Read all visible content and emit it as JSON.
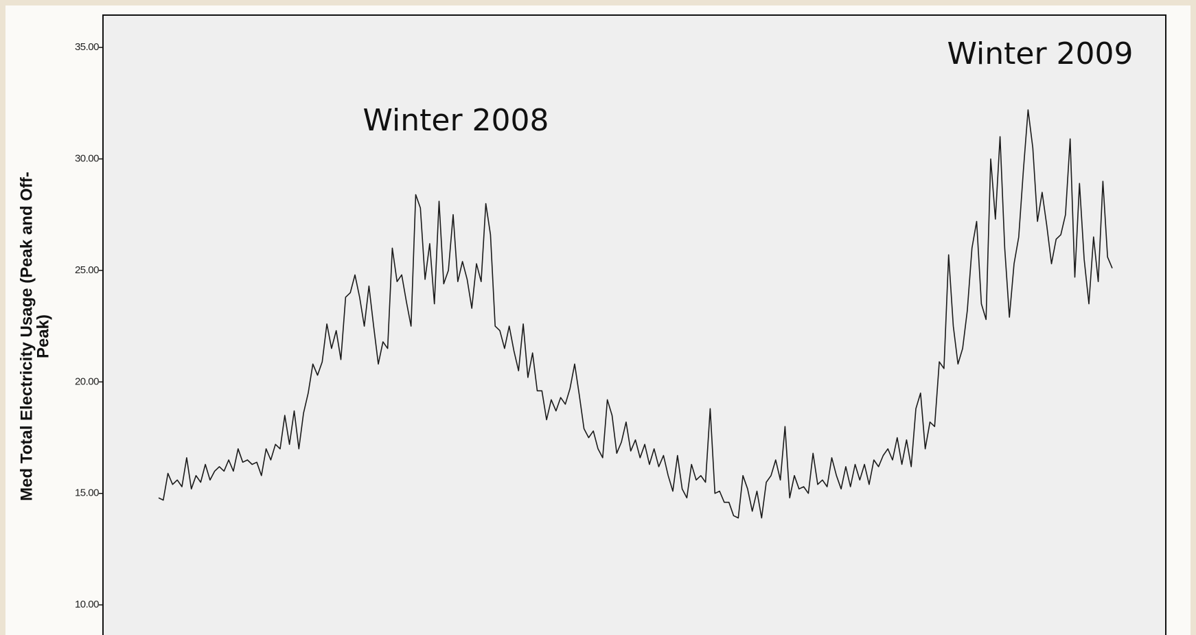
{
  "chart_data": {
    "type": "line",
    "y_label": [
      "Med Total Electricity Usage (Peak and Off-",
      "Peak)"
    ],
    "annotations": [
      "Winter 2008",
      "Winter 2009"
    ],
    "color": "#1a1a1a",
    "ylim": [
      8.65,
      36.45
    ],
    "yticks": [
      {
        "value": 10,
        "label": "10.00"
      },
      {
        "value": 15,
        "label": "15.00"
      },
      {
        "value": 20,
        "label": "20.00"
      },
      {
        "value": 25,
        "label": "25.00"
      },
      {
        "value": 30,
        "label": "30.00"
      },
      {
        "value": 35,
        "label": "35.00"
      }
    ],
    "values": [
      14.8,
      14.7,
      15.9,
      15.4,
      15.6,
      15.3,
      16.6,
      15.2,
      15.8,
      15.5,
      16.3,
      15.6,
      16.0,
      16.2,
      16.0,
      16.5,
      16.0,
      17.0,
      16.4,
      16.5,
      16.3,
      16.4,
      15.8,
      17.0,
      16.5,
      17.2,
      17.0,
      18.5,
      17.2,
      18.7,
      17.0,
      18.6,
      19.5,
      20.8,
      20.3,
      20.9,
      22.6,
      21.5,
      22.3,
      21.0,
      23.8,
      24.0,
      24.8,
      23.8,
      22.5,
      24.3,
      22.5,
      20.8,
      21.8,
      21.5,
      26.0,
      24.5,
      24.8,
      23.6,
      22.5,
      28.4,
      27.8,
      24.6,
      26.2,
      23.5,
      28.1,
      24.4,
      25.0,
      27.5,
      24.5,
      25.4,
      24.6,
      23.3,
      25.3,
      24.5,
      28.0,
      26.6,
      22.5,
      22.3,
      21.5,
      22.5,
      21.4,
      20.5,
      22.6,
      20.2,
      21.3,
      19.6,
      19.6,
      18.3,
      19.2,
      18.7,
      19.3,
      19.0,
      19.7,
      20.8,
      19.4,
      17.9,
      17.5,
      17.8,
      17.0,
      16.6,
      19.2,
      18.5,
      16.8,
      17.3,
      18.2,
      16.9,
      17.4,
      16.6,
      17.2,
      16.3,
      17.0,
      16.2,
      16.7,
      15.8,
      15.1,
      16.7,
      15.2,
      14.8,
      16.3,
      15.6,
      15.8,
      15.5,
      18.8,
      15.0,
      15.1,
      14.6,
      14.6,
      14.0,
      13.9,
      15.8,
      15.2,
      14.2,
      15.1,
      13.9,
      15.5,
      15.8,
      16.5,
      15.6,
      18.0,
      14.8,
      15.8,
      15.2,
      15.3,
      15.0,
      16.8,
      15.4,
      15.6,
      15.3,
      16.6,
      15.8,
      15.2,
      16.2,
      15.3,
      16.3,
      15.6,
      16.3,
      15.4,
      16.5,
      16.2,
      16.7,
      17.0,
      16.5,
      17.5,
      16.3,
      17.4,
      16.2,
      18.8,
      19.5,
      17.0,
      18.2,
      18.0,
      20.9,
      20.6,
      25.7,
      22.5,
      20.8,
      21.5,
      23.2,
      26.0,
      27.2,
      23.5,
      22.8,
      30.0,
      27.3,
      31.0,
      26.0,
      22.9,
      25.3,
      26.5,
      29.5,
      32.2,
      30.5,
      27.2,
      28.5,
      27.0,
      25.3,
      26.4,
      26.6,
      27.5,
      30.9,
      24.7,
      28.9,
      25.5,
      23.5,
      26.5,
      24.5,
      29.0,
      25.6,
      25.1
    ]
  }
}
